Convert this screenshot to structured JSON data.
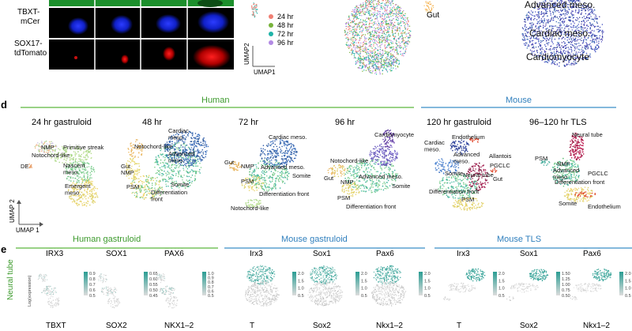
{
  "panel_top": {
    "row_labels": [
      "TBXT-\nmCer",
      "SOX17-\ntdTomato"
    ],
    "time_legend": [
      {
        "label": "24 hr",
        "color": "#f07f73"
      },
      {
        "label": "48 hr",
        "color": "#78b33b"
      },
      {
        "label": "72 hr",
        "color": "#1fb3a8"
      },
      {
        "label": "96 hr",
        "color": "#b28ae3"
      }
    ],
    "umap2_label": "UMAP2",
    "umap1_label": "UMAP1",
    "gut_label": "Gut",
    "right_cluster_labels": [
      "Advanced meso.",
      "Cardiac meso.",
      "Cardiomyocyte"
    ]
  },
  "panel_d": {
    "letter": "d",
    "group_human": "Human",
    "group_mouse": "Mouse",
    "colors": {
      "human": "#5cb83f",
      "mouse": "#3a8fc8"
    },
    "umap2": "UMAP 2",
    "umap1": "UMAP 1",
    "titles": [
      "24 hr gastruloid",
      "48 hr",
      "72 hr",
      "96 hr",
      "120 hr gastruloid",
      "96–120 hr TLS"
    ],
    "labels_24": [
      "NMP",
      "Primitive streak",
      "Notochord-like",
      "DE",
      "Nascent\nmeso.",
      "Emergent\nmeso."
    ],
    "labels_48": [
      "Cardiac\nmeso.",
      "Notochord-like",
      "Advanced\nmeso.",
      "Gut",
      "NMP",
      "PSM",
      "Somite",
      "Differentiation\nfront"
    ],
    "labels_72": [
      "Cardiac meso.",
      "Gut",
      "NMP",
      "Advanced meso.",
      "PSM",
      "Somite",
      "Differentiation front",
      "Notochord-like"
    ],
    "labels_96": [
      "Cardiomyocyte",
      "Notochord-like",
      "Gut",
      "NMP",
      "Advanced meso.",
      "Somite",
      "PSM",
      "Differentiation front"
    ],
    "labels_120": [
      "Endothelium",
      "Cardiac\nmeso.",
      "Advanced\nmeso.",
      "Allantois",
      "PGCLC",
      "Somite",
      "Neural tube",
      "Gut",
      "Differentiation front",
      "PSM"
    ],
    "labels_tls": [
      "Neural tube",
      "PSM",
      "NMP",
      "PGCLC",
      "Advanced\nmeso.",
      "Differentiation front",
      "Somite",
      "Endothelium"
    ]
  },
  "panel_e": {
    "letter": "e",
    "groups": [
      "Human gastruloid",
      "Mouse gastruloid",
      "Mouse TLS"
    ],
    "genes_row1": [
      "IRX3",
      "SOX1",
      "PAX6",
      "Irx3",
      "Sox1",
      "Pax6",
      "Irx3",
      "Sox1",
      "Pax6"
    ],
    "genes_row2": [
      "TBXT",
      "SOX2",
      "NKX1–2",
      "T",
      "Sox2",
      "Nkx1–2",
      "T",
      "Sox2",
      "Nkx1–2"
    ],
    "row_label": "Neural tube",
    "legend_title": "Log(expression)",
    "scales": [
      [
        "0.9",
        "0.8",
        "0.7",
        "0.6",
        "0.5"
      ],
      [
        "0.65",
        "0.60",
        "0.55",
        "0.50",
        "0.45"
      ],
      [
        "1.0",
        "0.9",
        "0.8",
        "0.7",
        "0.6",
        "0.5"
      ],
      [
        "2.0",
        "1.5",
        "1.0",
        "0.5"
      ],
      [
        "2.0",
        "1.5",
        "1.0",
        "0.5"
      ],
      [
        "2.0",
        "1.5",
        "1.0",
        "0.5"
      ],
      [
        "2.0",
        "1.5",
        "1.0",
        "0.5"
      ],
      [
        "1.50",
        "1.25",
        "1.00",
        "0.75",
        "0.50"
      ],
      [
        "2.0",
        "1.5",
        "1.0",
        "0.5"
      ]
    ]
  }
}
